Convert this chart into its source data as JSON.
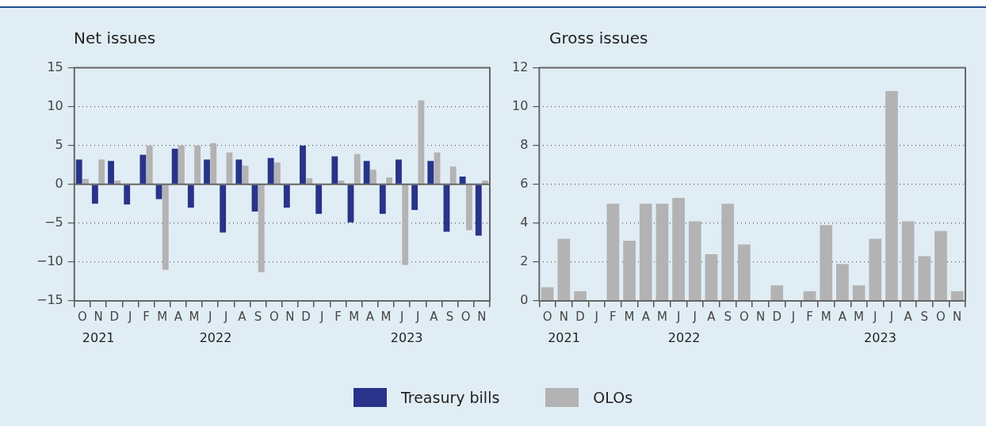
{
  "chart_data": [
    {
      "type": "bar",
      "title": "Net issues",
      "categories": [
        "O",
        "N",
        "D",
        "J",
        "F",
        "M",
        "A",
        "M",
        "J",
        "J",
        "A",
        "S",
        "O",
        "N",
        "D",
        "J",
        "F",
        "M",
        "A",
        "M",
        "J",
        "J",
        "A",
        "S",
        "O",
        "N"
      ],
      "series": [
        {
          "name": "Treasury bills",
          "color": "#29338a",
          "values": [
            3.2,
            -2.5,
            3.0,
            -2.6,
            3.8,
            -1.9,
            4.6,
            -3.0,
            3.2,
            -6.2,
            3.2,
            -3.5,
            3.4,
            -3.0,
            5.0,
            -3.8,
            3.6,
            -4.9,
            3.0,
            -3.8,
            3.2,
            -3.3,
            3.0,
            -6.1,
            1.0,
            -6.6
          ]
        },
        {
          "name": "OLOs",
          "color": "#b3b3b3",
          "values": [
            0.7,
            3.2,
            0.5,
            0,
            5.0,
            -11.0,
            5.0,
            5.0,
            5.3,
            4.1,
            2.4,
            -11.3,
            2.8,
            0,
            0.8,
            0,
            0.5,
            3.9,
            1.9,
            0.9,
            -10.4,
            10.8,
            4.1,
            2.3,
            -5.9,
            0.5
          ]
        }
      ],
      "ylim": [
        -15,
        15
      ],
      "yticks": [
        {
          "value": -15,
          "label": "−15"
        },
        {
          "value": -10,
          "label": "−10"
        },
        {
          "value": -5,
          "label": "−5"
        },
        0,
        5,
        10,
        15
      ],
      "grid": "y",
      "legend": "bottom",
      "annotations": [
        "2021",
        "2022",
        "2023"
      ]
    },
    {
      "type": "bar",
      "title": "Gross issues",
      "categories": [
        "O",
        "N",
        "D",
        "J",
        "F",
        "M",
        "A",
        "M",
        "J",
        "J",
        "A",
        "S",
        "O",
        "N",
        "D",
        "J",
        "F",
        "M",
        "A",
        "M",
        "J",
        "J",
        "A",
        "S",
        "O",
        "N"
      ],
      "series": [
        {
          "color": "#b3b3b3",
          "values": [
            0.7,
            3.2,
            0.5,
            0,
            5.0,
            3.1,
            5.0,
            5.0,
            5.3,
            4.1,
            2.4,
            5.0,
            2.9,
            0,
            0.8,
            0,
            0.5,
            3.9,
            1.9,
            0.8,
            3.2,
            10.8,
            4.1,
            2.3,
            3.6,
            0.5
          ]
        }
      ],
      "ylim": [
        0,
        12
      ],
      "yticks": [
        0,
        2,
        4,
        6,
        8,
        10,
        12
      ],
      "grid": "y",
      "annotations": [
        "2021",
        "2022",
        "2023"
      ]
    }
  ]
}
